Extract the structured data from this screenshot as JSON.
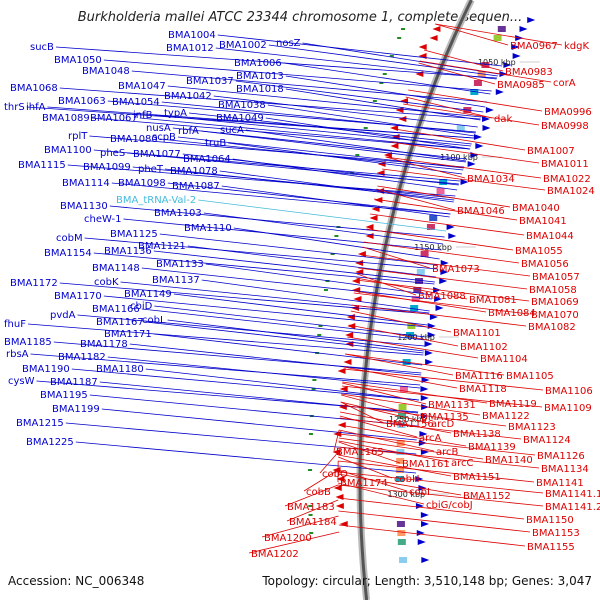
{
  "title": "Burkholderia mallei ATCC 23344 chromosome 1, complete sequen...",
  "footer": {
    "accession": "Accession: NC_006348",
    "summary": "Topology: circular; Length: 3,510,148 bp; Genes: 3,047"
  },
  "colors": {
    "forward_strand": "#0000cc",
    "reverse_strand": "#dd0000",
    "trna": "#44bbdd",
    "backbone": "#888888",
    "tick_dot": "#228b22"
  },
  "scale_labels": [
    "1050 kbp",
    "1100 kbp",
    "1150 kbp",
    "1200 kbp",
    "1250 kbp",
    "1300 kbp"
  ],
  "forward_labels": [
    "BMA1004",
    "BMA1012",
    "BMA1002",
    "nosZ",
    "sucB",
    "BMA1050",
    "BMA1048",
    "BMA1006",
    "BMA1013",
    "BMA1047",
    "BMA1037",
    "BMA1018",
    "BMA1068",
    "BMA1063",
    "BMA1054",
    "BMA1042",
    "BMA1038",
    "thrS",
    "ihfA",
    "BMA1089",
    "BMA1067",
    "infB",
    "typA",
    "BMA1049",
    "nusA",
    "rbfA",
    "sucA",
    "rplT",
    "BMA1080",
    "scpB",
    "truB",
    "BMA1100",
    "pheS",
    "BMA1077",
    "BMA1064",
    "BMA1115",
    "BMA1099",
    "pheT",
    "BMA1078",
    "BMA1114",
    "BMA1098",
    "BMA1087",
    "BMA1130",
    "BMA_tRNA-Val-2",
    "cheW-1",
    "BMA1103",
    "BMA1125",
    "BMA1110",
    "cobM",
    "BMA1121",
    "BMA1154",
    "BMA1136",
    "BMA1133",
    "BMA1148",
    "BMA1137",
    "BMA1172",
    "cobK",
    "BMA1149",
    "BMA1170",
    "cbiD",
    "BMA1166",
    "cobL",
    "pvdA",
    "BMA1167",
    "fhuF",
    "BMA1171",
    "BMA1185",
    "BMA1178",
    "rbsA",
    "BMA1182",
    "BMA1190",
    "BMA1180",
    "cysW",
    "BMA1187",
    "BMA1195",
    "BMA1199",
    "BMA1215",
    "BMA1225"
  ],
  "reverse_labels": [
    "BMA0967",
    "kdgK",
    "BMA0983",
    "BMA0985",
    "corA",
    "BMA0996",
    "dak",
    "BMA0998",
    "BMA1007",
    "BMA1011",
    "BMA1034",
    "BMA1022",
    "BMA1024",
    "BMA1040",
    "BMA1046",
    "BMA1041",
    "BMA1044",
    "BMA1055",
    "BMA1056",
    "BMA1073",
    "BMA1057",
    "BMA1058",
    "BMA1088",
    "BMA1081",
    "BMA1069",
    "BMA1084",
    "BMA1070",
    "BMA1082",
    "BMA1101",
    "BMA1102",
    "BMA1104",
    "BMA1116",
    "BMA1105",
    "BMA1118",
    "BMA1106",
    "BMA1131",
    "BMA1119",
    "BMA1109",
    "BMA1135",
    "BMA1122",
    "BMA1156",
    "arcD",
    "BMA1123",
    "BMA1138",
    "arcA",
    "BMA1124",
    "BMA1139",
    "arcB",
    "BMA1165",
    "BMA1140",
    "BMA1126",
    "BMA1161",
    "arcC",
    "BMA1134",
    "cobO",
    "cobH",
    "BMA1151",
    "BMA1141",
    "BMA1174",
    "cobI",
    "BMA1152",
    "BMA1141.1",
    "cobB",
    "cbiG/cobJ",
    "BMA1141.2",
    "BMA1183",
    "BMA1150",
    "BMA1184",
    "BMA1153",
    "BMA1200",
    "BMA1155",
    "BMA1202"
  ]
}
